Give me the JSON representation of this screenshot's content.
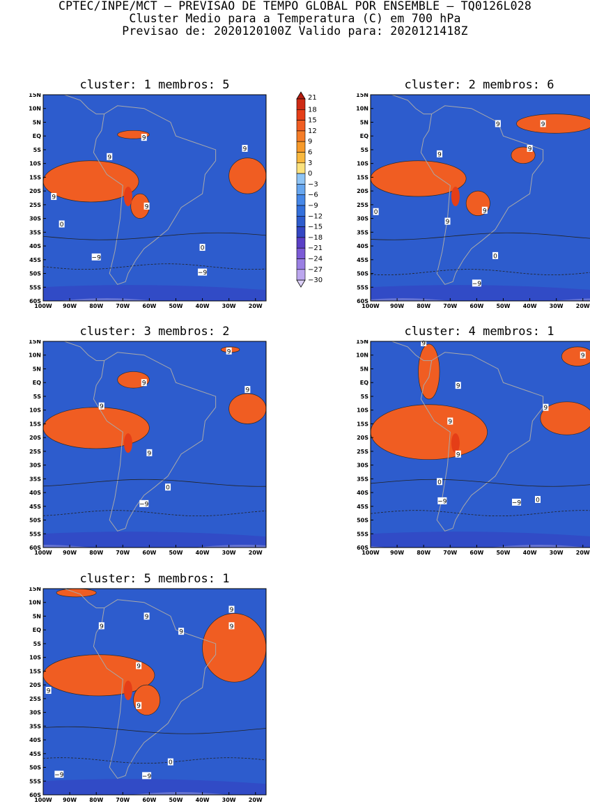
{
  "header": {
    "line1": "CPTEC/INPE/MCT – PREVISAO DE TEMPO GLOBAL POR ENSEMBLE – TQ0126L028",
    "line2": "Cluster Medio para a Temperatura (C) em 700 hPa",
    "line3": "Previsao de: 2020120100Z   Valido para: 2020121418Z"
  },
  "axes": {
    "lat_labels": [
      "15N",
      "10N",
      "5N",
      "EQ",
      "5S",
      "10S",
      "15S",
      "20S",
      "25S",
      "30S",
      "35S",
      "40S",
      "45S",
      "50S",
      "55S",
      "60S"
    ],
    "lon_labels": [
      "100W",
      "90W",
      "80W",
      "70W",
      "60W",
      "50W",
      "40W",
      "30W",
      "20W"
    ]
  },
  "colorbar": {
    "levels": [
      "21",
      "18",
      "15",
      "12",
      "9",
      "6",
      "3",
      "0",
      "−3",
      "−6",
      "−9",
      "−12",
      "−15",
      "−18",
      "−21",
      "−24",
      "−27",
      "−30"
    ],
    "colors": [
      "#b51c10",
      "#cd2a14",
      "#e53e17",
      "#f05d22",
      "#f57d28",
      "#f79a2a",
      "#f9b83e",
      "#fbe27d",
      "#8ec4f5",
      "#66a6ef",
      "#4587e8",
      "#3370dc",
      "#2d5ccd",
      "#3346c3",
      "#5a3fc6",
      "#7b5ad6",
      "#9a7fe3",
      "#bba6ee",
      "#dcd0f7"
    ]
  },
  "panels": [
    {
      "title": "cluster: 1   membros: 5",
      "labels": [
        {
          "t": "9",
          "lon": -62,
          "lat": -0.5
        },
        {
          "t": "9",
          "lon": -75,
          "lat": -7.5
        },
        {
          "t": "9",
          "lon": -24,
          "lat": -4.5
        },
        {
          "t": "9",
          "lon": -96,
          "lat": -22
        },
        {
          "t": "9",
          "lon": -61,
          "lat": -25.5
        },
        {
          "t": "0",
          "lon": -93,
          "lat": -32
        },
        {
          "t": "0",
          "lon": -40,
          "lat": -40.5
        },
        {
          "t": "−9",
          "lon": -80,
          "lat": -44
        },
        {
          "t": "−9",
          "lon": -40,
          "lat": -49.5
        }
      ]
    },
    {
      "title": "cluster: 2   membros: 6",
      "labels": [
        {
          "t": "9",
          "lon": -52,
          "lat": 4.5
        },
        {
          "t": "9",
          "lon": -35,
          "lat": 4.5
        },
        {
          "t": "9",
          "lon": -74,
          "lat": -6.5
        },
        {
          "t": "9",
          "lon": -40,
          "lat": -4.5
        },
        {
          "t": "9",
          "lon": -57,
          "lat": -27
        },
        {
          "t": "9",
          "lon": -71,
          "lat": -31
        },
        {
          "t": "0",
          "lon": -98,
          "lat": -27.5
        },
        {
          "t": "0",
          "lon": -53,
          "lat": -43.5
        },
        {
          "t": "−9",
          "lon": -60,
          "lat": -53.5
        }
      ]
    },
    {
      "title": "cluster: 3   membros: 2",
      "labels": [
        {
          "t": "9",
          "lon": -30,
          "lat": 11.5
        },
        {
          "t": "9",
          "lon": -62,
          "lat": 0
        },
        {
          "t": "9",
          "lon": -23,
          "lat": -2.5
        },
        {
          "t": "9",
          "lon": -78,
          "lat": -8.5
        },
        {
          "t": "9",
          "lon": -60,
          "lat": -25.5
        },
        {
          "t": "0",
          "lon": -53,
          "lat": -38
        },
        {
          "t": "−9",
          "lon": -62,
          "lat": -44
        }
      ]
    },
    {
      "title": "cluster: 4   membros: 1",
      "labels": [
        {
          "t": "9",
          "lon": -80,
          "lat": 14.5
        },
        {
          "t": "9",
          "lon": -20,
          "lat": 10
        },
        {
          "t": "9",
          "lon": -67,
          "lat": -1
        },
        {
          "t": "9",
          "lon": -70,
          "lat": -14
        },
        {
          "t": "9",
          "lon": -34,
          "lat": -9
        },
        {
          "t": "9",
          "lon": -67,
          "lat": -26
        },
        {
          "t": "0",
          "lon": -74,
          "lat": -36
        },
        {
          "t": "0",
          "lon": -37,
          "lat": -42.5
        },
        {
          "t": "−9",
          "lon": -73,
          "lat": -43
        },
        {
          "t": "−9",
          "lon": -45,
          "lat": -43.5
        }
      ]
    },
    {
      "title": "cluster: 5   membros: 1",
      "labels": [
        {
          "t": "9",
          "lon": -29,
          "lat": 7.5
        },
        {
          "t": "9",
          "lon": -61,
          "lat": 5
        },
        {
          "t": "9",
          "lon": -78,
          "lat": 1.5
        },
        {
          "t": "9",
          "lon": -48,
          "lat": -0.5
        },
        {
          "t": "9",
          "lon": -29,
          "lat": 1.5
        },
        {
          "t": "9",
          "lon": -64,
          "lat": -13
        },
        {
          "t": "9",
          "lon": -98,
          "lat": -22
        },
        {
          "t": "9",
          "lon": -64,
          "lat": -27.5
        },
        {
          "t": "0",
          "lon": -52,
          "lat": -48
        },
        {
          "t": "−9",
          "lon": -94,
          "lat": -52.5
        },
        {
          "t": "−9",
          "lon": -61,
          "lat": -53
        }
      ]
    }
  ]
}
